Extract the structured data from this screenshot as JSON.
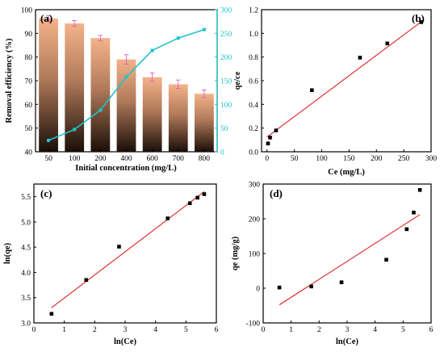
{
  "chart_data": [
    {
      "panel": "(a)",
      "type": "bar+line",
      "xlabel": "Initial concentration (mg/L)",
      "ylabel": "Removal efficiency  (%)",
      "ylim": [
        40,
        100
      ],
      "y2lim": [
        0,
        300
      ],
      "categories": [
        "50",
        "100",
        "200",
        "400",
        "600",
        "700",
        "800"
      ],
      "xticks": [
        "50",
        "100",
        "200",
        "400",
        "600",
        "700",
        "800"
      ],
      "yticks": [
        "40",
        "50",
        "60",
        "70",
        "80",
        "90",
        "100"
      ],
      "y2ticks": [
        "0",
        "50",
        "100",
        "150",
        "200",
        "250",
        "300"
      ],
      "bar_values": [
        96.3,
        94.2,
        88.0,
        79.0,
        71.5,
        68.5,
        64.5
      ],
      "bar_errors": [
        1.2,
        1.2,
        1.2,
        2.0,
        1.8,
        1.8,
        1.6
      ],
      "line_values": [
        24,
        47,
        88,
        158,
        214,
        240,
        258
      ],
      "line_errors": [
        2,
        2,
        2,
        3,
        3,
        3,
        3
      ],
      "bar_color_top": "#f4b38a",
      "bar_color_bottom": "#1a0e08",
      "line_color": "#1fc4c9",
      "error_color": "#e060c0"
    },
    {
      "panel": "(b)",
      "type": "scatter",
      "xlabel": "Ce (mg/L)",
      "ylabel": "qe/ce",
      "xlim": [
        -10,
        300
      ],
      "ylim": [
        0,
        1.2
      ],
      "xticks": [
        "0",
        "50",
        "100",
        "150",
        "200",
        "250",
        "300"
      ],
      "yticks": [
        "0.0",
        "0.2",
        "0.4",
        "0.6",
        "0.8",
        "1.0",
        "1.2"
      ],
      "x": [
        1.8,
        5.6,
        16.5,
        82,
        170,
        220,
        282
      ],
      "y": [
        0.07,
        0.12,
        0.18,
        0.52,
        0.795,
        0.915,
        1.095
      ],
      "fit": [
        [
          0,
          0.125
        ],
        [
          287,
          1.115
        ]
      ],
      "fit_color": "#e02020"
    },
    {
      "panel": "(c)",
      "type": "scatter",
      "xlabel": "ln(Ce)",
      "ylabel": "ln(qe)",
      "xlim": [
        0,
        6
      ],
      "ylim": [
        3.0,
        5.75
      ],
      "xticks": [
        "0",
        "1",
        "2",
        "3",
        "4",
        "5",
        "6"
      ],
      "yticks": [
        "3.0",
        "3.5",
        "4.0",
        "4.5",
        "5.0",
        "5.5"
      ],
      "x": [
        0.58,
        1.72,
        2.8,
        4.4,
        5.13,
        5.38,
        5.6
      ],
      "y": [
        3.18,
        3.85,
        4.51,
        5.07,
        5.37,
        5.48,
        5.55
      ],
      "fit": [
        [
          0.58,
          3.3
        ],
        [
          5.6,
          5.6
        ]
      ],
      "fit_color": "#e02020"
    },
    {
      "panel": "(d)",
      "type": "scatter",
      "xlabel": "ln(Ce)",
      "ylabel": "qe (mg/g)",
      "xlim": [
        0,
        6
      ],
      "ylim": [
        -100,
        300
      ],
      "xticks": [
        "0",
        "1",
        "2",
        "3",
        "4",
        "5",
        "6"
      ],
      "yticks": [
        "-100",
        "0",
        "100",
        "200",
        "300"
      ],
      "x": [
        0.58,
        1.72,
        2.8,
        4.4,
        5.13,
        5.38,
        5.6
      ],
      "y": [
        2,
        5,
        17,
        82,
        170,
        218,
        283
      ],
      "fit": [
        [
          0.58,
          -48
        ],
        [
          5.6,
          212
        ]
      ],
      "fit_color": "#e02020"
    }
  ]
}
